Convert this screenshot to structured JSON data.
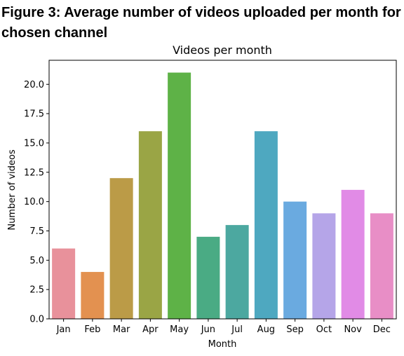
{
  "figure_caption": "Figure 3: Average number of videos uploaded per month for chosen channel",
  "chart_data": {
    "type": "bar",
    "title": "Videos per month",
    "xlabel": "Month",
    "ylabel": "Number of videos",
    "categories": [
      "Jan",
      "Feb",
      "Mar",
      "Apr",
      "May",
      "Jun",
      "Jul",
      "Aug",
      "Sep",
      "Oct",
      "Nov",
      "Dec"
    ],
    "values": [
      6,
      4,
      12,
      16,
      21,
      7,
      8,
      16,
      10,
      9,
      11,
      9
    ],
    "colors": [
      "#e8919b",
      "#e39150",
      "#bb9b47",
      "#9aa545",
      "#5eb247",
      "#4aab84",
      "#4ca8a0",
      "#4ea8c0",
      "#6aaae0",
      "#b5a5e8",
      "#e18be6",
      "#e88ec6"
    ],
    "ylim": [
      0,
      22.05
    ],
    "yticks": [
      0.0,
      2.5,
      5.0,
      7.5,
      10.0,
      12.5,
      15.0,
      17.5,
      20.0
    ],
    "ytick_labels": [
      "0.0",
      "2.5",
      "5.0",
      "7.5",
      "10.0",
      "12.5",
      "15.0",
      "17.5",
      "20.0"
    ],
    "grid": false,
    "legend": "none"
  }
}
